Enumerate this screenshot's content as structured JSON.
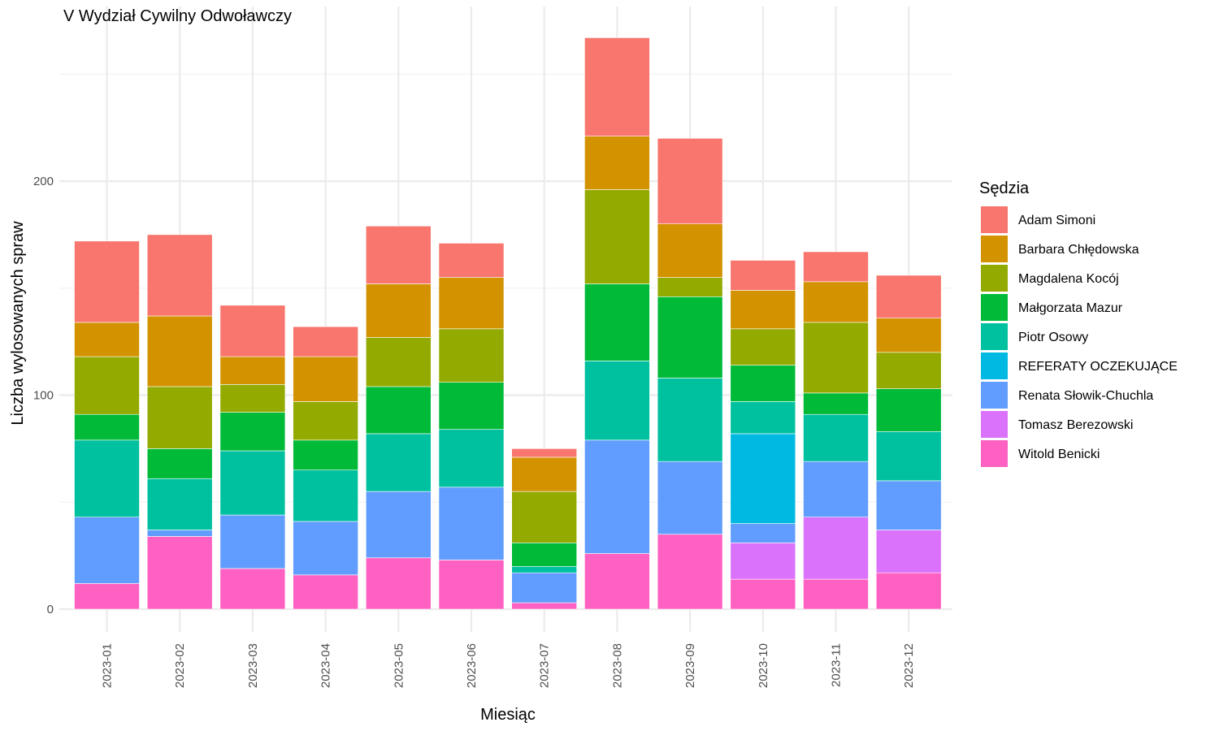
{
  "chart_data": {
    "type": "bar",
    "stacked": true,
    "title": "V Wydział Cywilny Odwoławczy",
    "xlabel": "Miesiąc",
    "ylabel": "Liczba wylosowanych spraw",
    "ylim": [
      0,
      280
    ],
    "yticks": [
      0,
      100,
      200
    ],
    "legend_title": "Sędzia",
    "legend_position": "right",
    "grid": true,
    "categories": [
      "2023-01",
      "2023-02",
      "2023-03",
      "2023-04",
      "2023-05",
      "2023-06",
      "2023-07",
      "2023-08",
      "2023-09",
      "2023-10",
      "2023-11",
      "2023-12"
    ],
    "series": [
      {
        "name": "Adam Simoni",
        "color": "#F8766D",
        "values": [
          38,
          38,
          24,
          14,
          27,
          16,
          4,
          46,
          40,
          14,
          14,
          20
        ]
      },
      {
        "name": "Barbara Chłędowska",
        "color": "#D39200",
        "values": [
          16,
          33,
          13,
          21,
          25,
          24,
          16,
          25,
          25,
          18,
          19,
          16
        ]
      },
      {
        "name": "Magdalena Kocój",
        "color": "#93AA00",
        "values": [
          27,
          29,
          13,
          18,
          23,
          25,
          24,
          44,
          9,
          17,
          33,
          17
        ]
      },
      {
        "name": "Małgorzata Mazur",
        "color": "#00BA38",
        "values": [
          12,
          14,
          18,
          14,
          22,
          22,
          11,
          36,
          38,
          17,
          10,
          20
        ]
      },
      {
        "name": "Piotr Osowy",
        "color": "#00C19F",
        "values": [
          36,
          24,
          30,
          24,
          27,
          27,
          3,
          37,
          39,
          15,
          22,
          23
        ]
      },
      {
        "name": "REFERATY OCZEKUJĄCE",
        "color": "#00B9E3",
        "values": [
          0,
          0,
          0,
          0,
          0,
          0,
          0,
          0,
          0,
          42,
          0,
          0
        ]
      },
      {
        "name": "Renata Słowik-Chuchla",
        "color": "#619CFF",
        "values": [
          31,
          3,
          25,
          25,
          31,
          34,
          14,
          53,
          34,
          9,
          26,
          23
        ]
      },
      {
        "name": "Tomasz Berezowski",
        "color": "#DB72FB",
        "values": [
          0,
          0,
          0,
          0,
          0,
          0,
          0,
          0,
          0,
          17,
          29,
          20
        ]
      },
      {
        "name": "Witold Benicki",
        "color": "#FF61C3",
        "values": [
          12,
          34,
          19,
          16,
          24,
          23,
          3,
          26,
          35,
          14,
          14,
          17
        ]
      }
    ]
  }
}
